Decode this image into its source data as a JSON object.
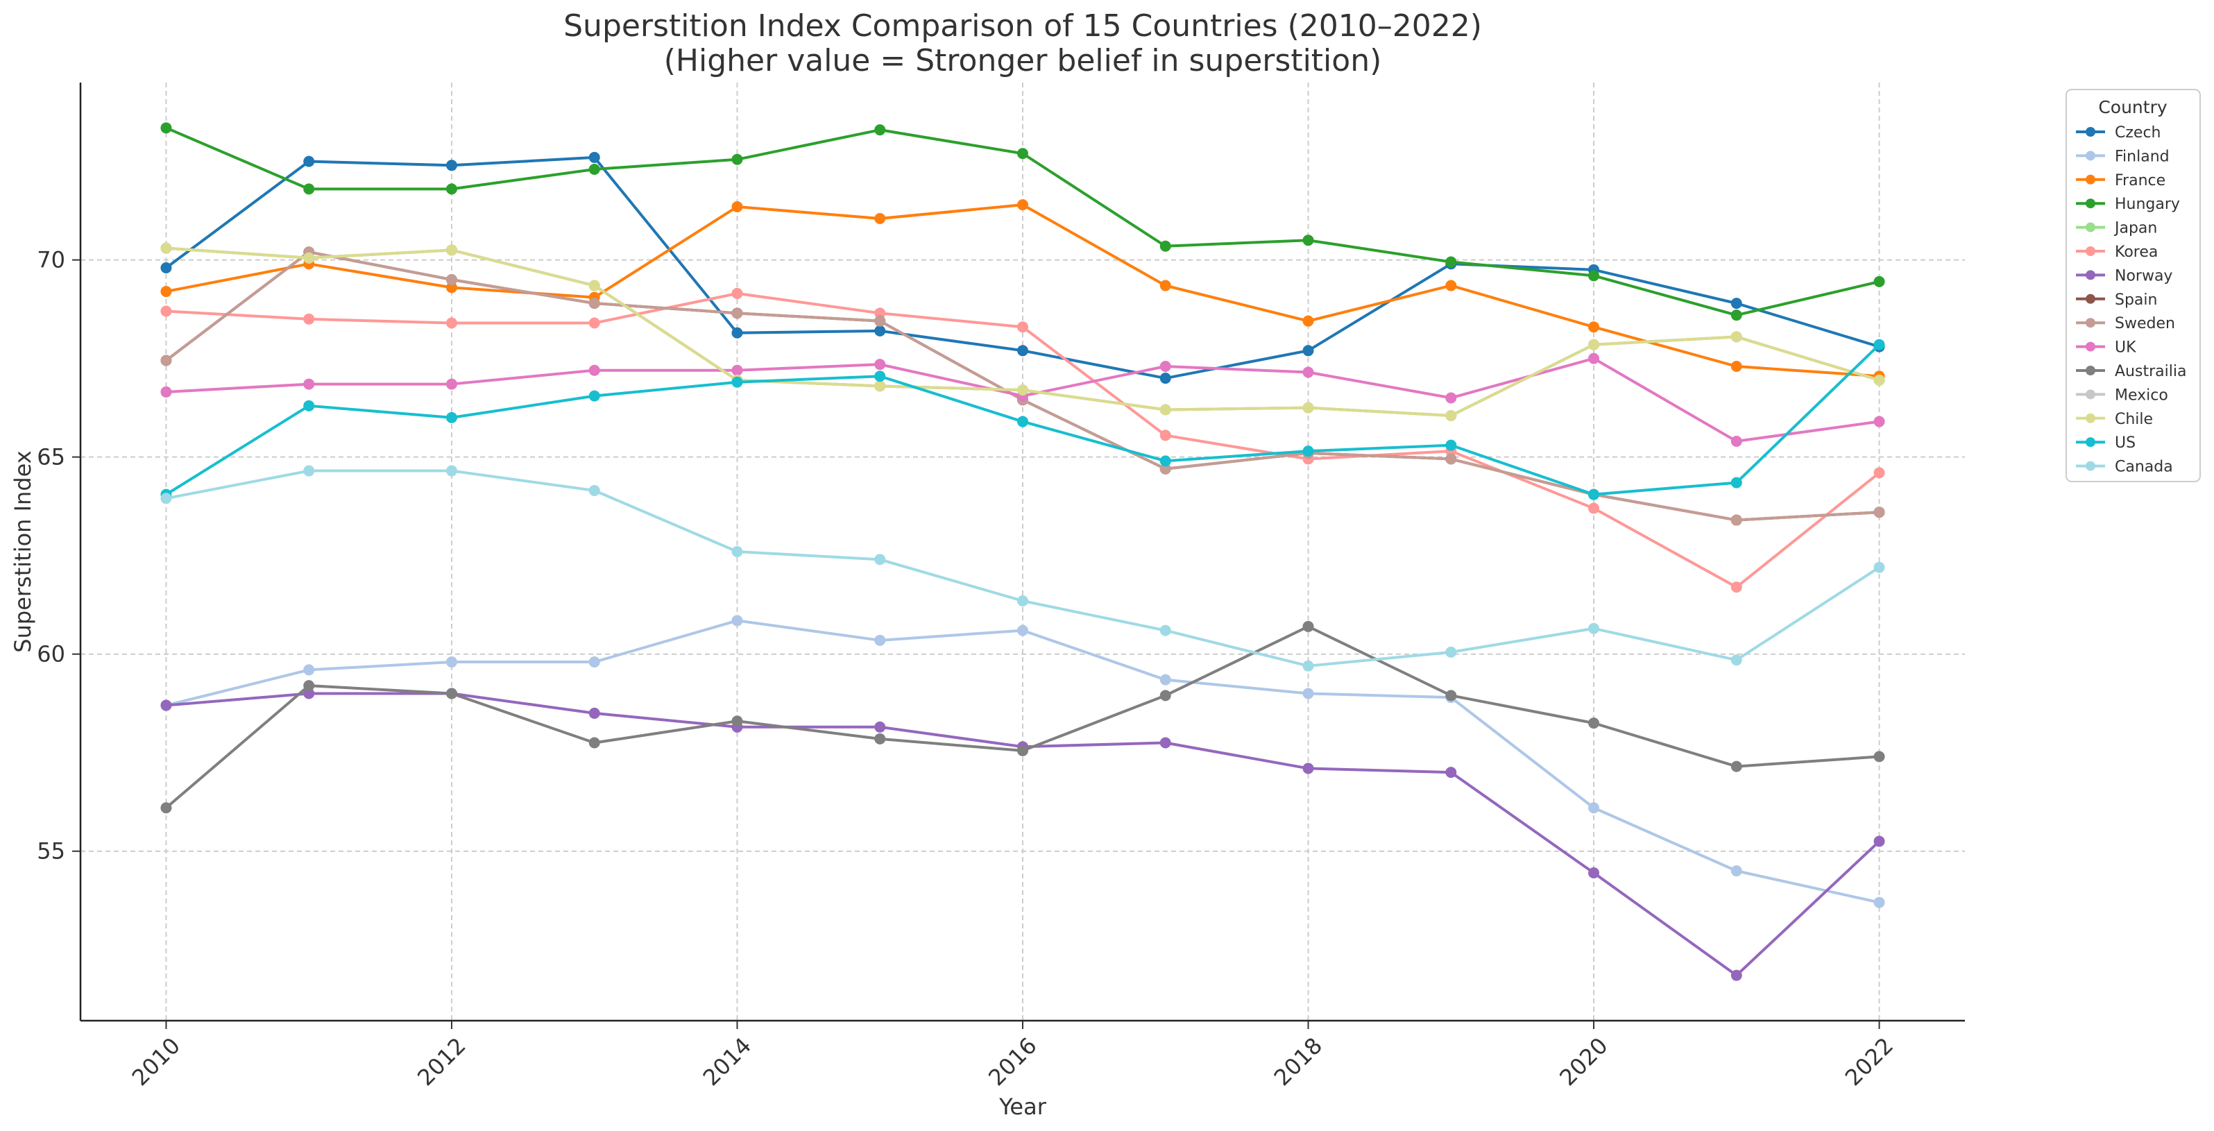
{
  "chart_data": {
    "type": "line",
    "title": "Superstition Index Comparison of 15 Countries (2010–2022)",
    "subtitle": "(Higher value = Stronger belief in superstition)",
    "xlabel": "Year",
    "ylabel": "Superstition Index",
    "x": [
      2010,
      2011,
      2012,
      2013,
      2014,
      2015,
      2016,
      2017,
      2018,
      2019,
      2020,
      2021,
      2022
    ],
    "x_ticks": [
      "2010",
      "2012",
      "2014",
      "2016",
      "2018",
      "2020",
      "2022"
    ],
    "y_ticks": [
      "55",
      "60",
      "65",
      "70"
    ],
    "xlim": [
      2009.4,
      2022.6
    ],
    "ylim": [
      50.7,
      74.5
    ],
    "grid": true,
    "legend_title": "Country",
    "legend_position": "outside-top-right",
    "series": [
      {
        "name": "Czech",
        "color": "#1f77b4",
        "values": [
          69.8,
          72.5,
          72.4,
          72.6,
          68.15,
          68.2,
          67.7,
          67.0,
          67.7,
          69.9,
          69.75,
          68.9,
          67.8
        ]
      },
      {
        "name": "Finland",
        "color": "#aec7e8",
        "values": [
          58.7,
          59.6,
          59.8,
          59.8,
          60.85,
          60.35,
          60.6,
          59.35,
          59.0,
          58.9,
          56.1,
          54.5,
          53.7
        ]
      },
      {
        "name": "France",
        "color": "#ff7f0e",
        "values": [
          69.2,
          69.9,
          69.3,
          69.05,
          71.35,
          71.05,
          71.4,
          69.35,
          68.45,
          69.35,
          68.3,
          67.3,
          67.05
        ]
      },
      {
        "name": "Hungary",
        "color": "#2ca02c",
        "values": [
          73.35,
          71.8,
          71.8,
          72.3,
          72.55,
          73.3,
          72.7,
          70.35,
          70.5,
          69.95,
          69.6,
          68.6,
          69.45
        ]
      },
      {
        "name": "Japan",
        "color": "#98df8a",
        "values": [
          70.3,
          70.05,
          70.25,
          69.35,
          66.95,
          66.8,
          66.7,
          66.2,
          66.25,
          66.05,
          67.85,
          68.05,
          66.95
        ]
      },
      {
        "name": "Korea",
        "color": "#ff9896",
        "values": [
          68.7,
          68.5,
          68.4,
          68.4,
          69.15,
          68.65,
          68.3,
          65.55,
          64.95,
          65.15,
          63.7,
          61.7,
          64.6
        ]
      },
      {
        "name": "Norway",
        "color": "#9467bd",
        "values": [
          58.7,
          59.0,
          59.0,
          58.5,
          58.15,
          58.15,
          57.65,
          57.75,
          57.1,
          57.0,
          54.45,
          51.85,
          55.25
        ]
      },
      {
        "name": "Spain",
        "color": "#8c564b",
        "values": [
          67.45,
          70.2,
          69.5,
          68.9,
          68.65,
          68.45,
          66.45,
          64.7,
          65.1,
          64.95,
          64.05,
          63.4,
          63.6
        ]
      },
      {
        "name": "Sweden",
        "color": "#c49c94",
        "values": [
          67.45,
          70.2,
          69.5,
          68.9,
          68.65,
          68.45,
          66.45,
          64.7,
          65.1,
          64.95,
          64.05,
          63.4,
          63.6
        ]
      },
      {
        "name": "UK",
        "color": "#e377c2",
        "values": [
          66.65,
          66.85,
          66.85,
          67.2,
          67.2,
          67.35,
          66.55,
          67.3,
          67.15,
          66.5,
          67.5,
          65.4,
          65.9
        ]
      },
      {
        "name": "Austrailia",
        "color": "#7f7f7f",
        "values": [
          56.1,
          59.2,
          59.0,
          57.75,
          58.3,
          57.85,
          57.55,
          58.95,
          60.7,
          58.95,
          58.25,
          57.15,
          57.4
        ]
      },
      {
        "name": "Mexico",
        "color": "#c7c7c7",
        "values": [
          70.3,
          70.05,
          70.25,
          69.35,
          66.95,
          66.8,
          66.7,
          66.2,
          66.25,
          66.05,
          67.85,
          68.05,
          66.95
        ]
      },
      {
        "name": "Chile",
        "color": "#dbdb8d",
        "values": [
          70.3,
          70.05,
          70.25,
          69.35,
          66.95,
          66.8,
          66.7,
          66.2,
          66.25,
          66.05,
          67.85,
          68.05,
          66.95
        ]
      },
      {
        "name": "US",
        "color": "#17becf",
        "values": [
          64.05,
          66.3,
          66.0,
          66.55,
          66.9,
          67.05,
          65.9,
          64.9,
          65.15,
          65.3,
          64.05,
          64.35,
          67.85
        ]
      },
      {
        "name": "Canada",
        "color": "#9edae5",
        "values": [
          63.95,
          64.65,
          64.65,
          64.15,
          62.6,
          62.4,
          61.35,
          60.6,
          59.7,
          60.05,
          60.65,
          59.85,
          62.2
        ]
      }
    ]
  }
}
